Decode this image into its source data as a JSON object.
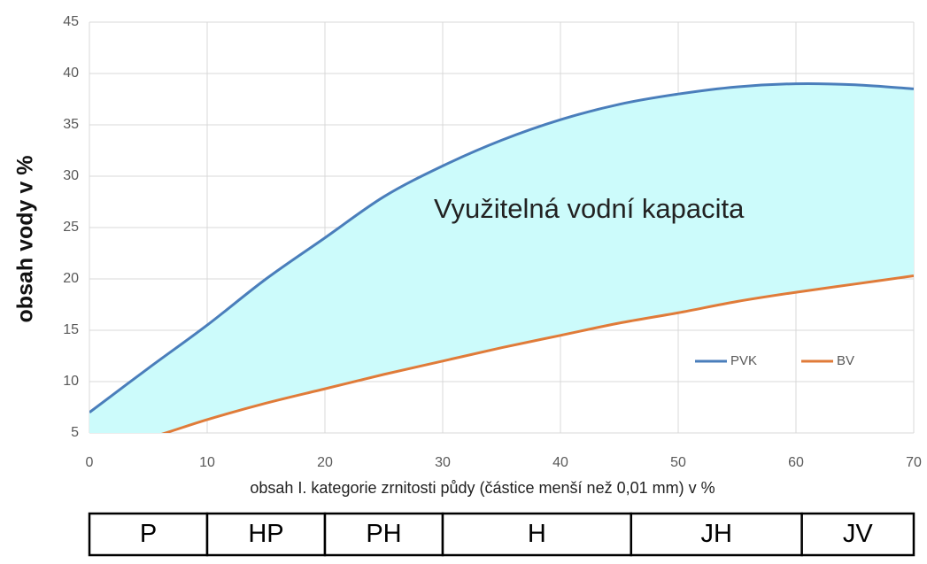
{
  "chart_data": {
    "type": "line",
    "y_label": "obsah vody v %",
    "x_label": "obsah I. kategorie zrnitosti půdy (částice menší než 0,01 mm) v %",
    "annotation": "Využitelná vodní kapacita",
    "x": [
      0,
      5,
      10,
      15,
      20,
      25,
      30,
      35,
      40,
      45,
      50,
      55,
      60,
      65,
      70
    ],
    "series": [
      {
        "name": "PVK",
        "color": "#4a7ebb",
        "values": [
          7,
          11.3,
          15.5,
          20,
          24,
          28,
          31,
          33.5,
          35.5,
          37,
          38,
          38.7,
          39,
          38.9,
          38.5
        ]
      },
      {
        "name": "BV",
        "color": "#e07b39",
        "values": [
          3.2,
          4.5,
          6.3,
          7.9,
          9.3,
          10.7,
          12,
          13.3,
          14.5,
          15.7,
          16.7,
          17.8,
          18.7,
          19.5,
          20.3
        ]
      }
    ],
    "area_color": "#ccfbfb",
    "xlim": [
      0,
      70
    ],
    "xticks": [
      0,
      10,
      20,
      30,
      40,
      50,
      60,
      70
    ],
    "ylim": [
      5,
      45
    ],
    "yticks": [
      5,
      10,
      15,
      20,
      25,
      30,
      35,
      40,
      45
    ],
    "grid": true,
    "legend": "lower right",
    "soil_classes": [
      {
        "label": "P",
        "from": 0,
        "to": 10
      },
      {
        "label": "HP",
        "from": 10,
        "to": 20
      },
      {
        "label": "PH",
        "from": 20,
        "to": 30
      },
      {
        "label": "H",
        "from": 30,
        "to": 46
      },
      {
        "label": "JH",
        "from": 46,
        "to": 60.5
      },
      {
        "label": "JV",
        "from": 60.5,
        "to": 70
      }
    ]
  }
}
